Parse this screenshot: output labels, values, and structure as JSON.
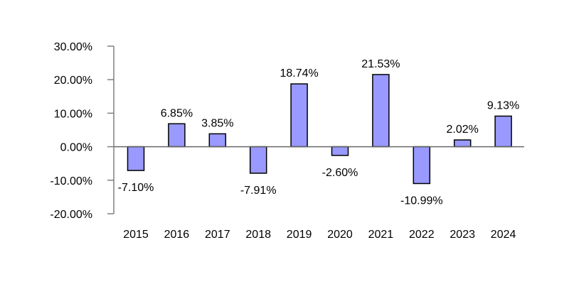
{
  "chart_data": {
    "type": "bar",
    "categories": [
      "2015",
      "2016",
      "2017",
      "2018",
      "2019",
      "2020",
      "2021",
      "2022",
      "2023",
      "2024"
    ],
    "values": [
      -7.1,
      6.85,
      3.85,
      -7.91,
      18.74,
      -2.6,
      21.53,
      -10.99,
      2.02,
      9.13
    ],
    "data_labels": [
      "-7.10%",
      "6.85%",
      "3.85%",
      "-7.91%",
      "18.74%",
      "-2.60%",
      "21.53%",
      "-10.99%",
      "2.02%",
      "9.13%"
    ],
    "y_ticks": [
      30,
      20,
      10,
      0,
      -10,
      -20
    ],
    "y_tick_labels": [
      "30.00%",
      "20.00%",
      "10.00%",
      "0.00%",
      "-10.00%",
      "-20.00%"
    ],
    "ylim": [
      -20,
      30
    ],
    "title": "",
    "xlabel": "",
    "ylabel": "",
    "grid": false,
    "legend": "none",
    "colors": {
      "bar_fill": "#9999ff",
      "bar_stroke": "#000000",
      "axis": "#808080",
      "zero_line": "#666666",
      "text": "#000000"
    }
  }
}
